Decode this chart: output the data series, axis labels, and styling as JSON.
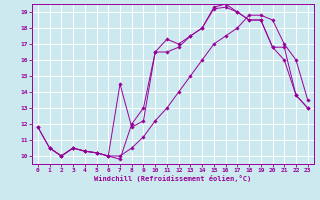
{
  "xlabel": "Windchill (Refroidissement éolien,°C)",
  "bg_color": "#cce9f0",
  "line_color": "#990099",
  "grid_color": "#ffffff",
  "lines": [
    {
      "x": [
        0,
        1,
        2,
        3,
        4,
        5,
        6,
        7,
        8,
        9,
        10,
        11,
        12,
        13,
        14,
        15,
        16,
        17,
        18,
        19,
        20,
        21,
        22,
        23
      ],
      "y": [
        11.8,
        10.5,
        10.0,
        10.5,
        10.3,
        10.2,
        10.0,
        10.0,
        10.5,
        11.2,
        12.2,
        13.0,
        14.0,
        15.0,
        16.0,
        17.0,
        17.5,
        18.0,
        18.8,
        18.8,
        18.5,
        17.0,
        16.0,
        13.5
      ]
    },
    {
      "x": [
        0,
        1,
        2,
        3,
        4,
        5,
        6,
        7,
        8,
        9,
        10,
        11,
        12,
        13,
        14,
        15,
        16,
        17,
        18,
        19,
        20,
        21,
        22,
        23
      ],
      "y": [
        11.8,
        10.5,
        10.0,
        10.5,
        10.3,
        10.2,
        10.0,
        14.5,
        11.8,
        12.2,
        16.5,
        17.3,
        17.0,
        17.5,
        18.0,
        19.2,
        19.3,
        19.0,
        18.5,
        18.5,
        16.8,
        16.0,
        13.8,
        13.0
      ]
    },
    {
      "x": [
        1,
        2,
        3,
        4,
        5,
        6,
        7,
        8,
        9,
        10,
        11,
        12,
        13,
        14,
        15,
        16,
        17,
        18,
        19,
        20,
        21,
        22,
        23
      ],
      "y": [
        10.5,
        10.0,
        10.5,
        10.3,
        10.2,
        10.0,
        9.8,
        12.0,
        13.0,
        16.5,
        16.5,
        16.8,
        17.5,
        18.0,
        19.3,
        19.5,
        19.0,
        18.5,
        18.5,
        16.8,
        16.8,
        13.8,
        13.0
      ]
    }
  ],
  "xlim": [
    -0.5,
    23.5
  ],
  "ylim": [
    9.5,
    19.5
  ],
  "yticks": [
    10,
    11,
    12,
    13,
    14,
    15,
    16,
    17,
    18,
    19
  ],
  "xticks": [
    0,
    1,
    2,
    3,
    4,
    5,
    6,
    7,
    8,
    9,
    10,
    11,
    12,
    13,
    14,
    15,
    16,
    17,
    18,
    19,
    20,
    21,
    22,
    23
  ]
}
